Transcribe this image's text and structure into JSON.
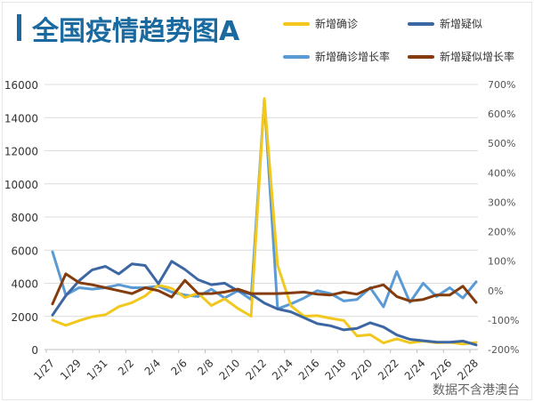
{
  "title": "全国疫情趋势图A",
  "footnote": "数据不含港澳台",
  "chart_data": {
    "type": "line",
    "title": "全国疫情趋势图A",
    "x": [
      "1/27",
      "1/28",
      "1/29",
      "1/30",
      "1/31",
      "2/1",
      "2/2",
      "2/3",
      "2/4",
      "2/5",
      "2/6",
      "2/7",
      "2/8",
      "2/9",
      "2/10",
      "2/11",
      "2/12",
      "2/13",
      "2/14",
      "2/15",
      "2/16",
      "2/17",
      "2/18",
      "2/19",
      "2/20",
      "2/21",
      "2/22",
      "2/23",
      "2/24",
      "2/25",
      "2/26",
      "2/27",
      "2/28"
    ],
    "x_tick_labels": [
      "1/27",
      "1/29",
      "1/31",
      "2/2",
      "2/4",
      "2/6",
      "2/8",
      "2/10",
      "2/12",
      "2/14",
      "2/16",
      "2/18",
      "2/20",
      "2/22",
      "2/24",
      "2/26",
      "2/28"
    ],
    "y_left": {
      "ylim": [
        0,
        16000
      ],
      "ticks": [
        "0",
        "2000",
        "4000",
        "6000",
        "8000",
        "10000",
        "12000",
        "14000",
        "16000"
      ]
    },
    "y_right": {
      "ylim": [
        -200,
        700
      ],
      "ticks": [
        "-200%",
        "-100%",
        "0%",
        "100%",
        "200%",
        "300%",
        "400%",
        "500%",
        "600%",
        "700%"
      ]
    },
    "grid": true,
    "legend": "top-right",
    "series": [
      {
        "name": "新增确诊",
        "axis": "left",
        "color": "#f2c81e",
        "values": [
          1771,
          1459,
          1737,
          1982,
          2102,
          2590,
          2829,
          3235,
          3887,
          3694,
          3143,
          3399,
          2656,
          3062,
          2478,
          2015,
          15152,
          5090,
          2641,
          2009,
          2048,
          1886,
          1749,
          820,
          889,
          397,
          648,
          409,
          508,
          406,
          433,
          327,
          427
        ]
      },
      {
        "name": "新增疑似",
        "axis": "left",
        "color": "#3d67a3",
        "values": [
          2077,
          3248,
          4148,
          4812,
          5019,
          4562,
          5173,
          5072,
          3971,
          5328,
          4833,
          4214,
          3916,
          4008,
          3536,
          3342,
          2807,
          2450,
          2277,
          1918,
          1563,
          1432,
          1185,
          1277,
          1614,
          1361,
          882,
          620,
          530,
          452,
          439,
          508,
          280
        ]
      },
      {
        "name": "新增确诊增长率",
        "axis": "right",
        "color": "#5b9bd5",
        "values": [
          132,
          -15,
          10,
          5,
          10,
          20,
          10,
          10,
          15,
          -5,
          -15,
          -20,
          5,
          -25,
          0,
          -30,
          650,
          -62,
          -45,
          -25,
          0,
          -10,
          -35,
          -30,
          10,
          -55,
          65,
          -40,
          25,
          -20,
          10,
          -25,
          30
        ]
      },
      {
        "name": "新增疑似增长率",
        "axis": "right",
        "color": "#843c0c",
        "values": [
          -45,
          57,
          27,
          20,
          10,
          0,
          -10,
          10,
          0,
          -22,
          35,
          -10,
          -10,
          -5,
          5,
          -10,
          -10,
          -10,
          -8,
          -5,
          -12,
          -15,
          -5,
          -12,
          8,
          20,
          -20,
          -35,
          -30,
          -15,
          -15,
          15,
          -40
        ]
      }
    ]
  }
}
